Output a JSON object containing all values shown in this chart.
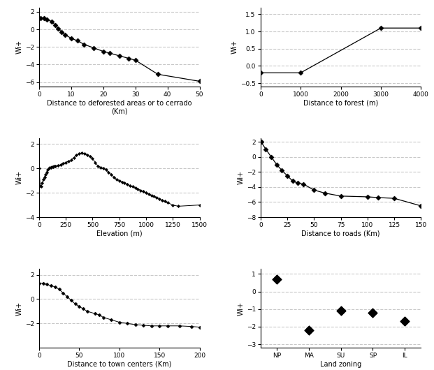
{
  "subplot_a": {
    "xlabel": "Distance to deforested areas or to cerrado\n(Km)",
    "ylabel": "Wi+",
    "x": [
      0.5,
      1.5,
      2.5,
      4,
      5,
      6,
      7,
      8,
      10,
      12,
      14,
      17,
      20,
      22,
      25,
      28,
      30,
      37,
      50
    ],
    "y": [
      1.3,
      1.3,
      1.1,
      0.9,
      0.5,
      0.1,
      -0.3,
      -0.6,
      -1.0,
      -1.3,
      -1.7,
      -2.1,
      -2.5,
      -2.7,
      -3.0,
      -3.3,
      -3.5,
      -5.1,
      -5.9
    ],
    "xlim": [
      0,
      50
    ],
    "ylim": [
      -6.5,
      2.5
    ],
    "yticks": [
      -6,
      -4,
      -2,
      0,
      2
    ],
    "xticks": [
      0,
      10,
      20,
      30,
      40,
      50
    ]
  },
  "subplot_b": {
    "xlabel": "Distance to forest (m)",
    "ylabel": "Wi+",
    "x": [
      0,
      1000,
      3000,
      4000
    ],
    "y": [
      -0.2,
      -0.2,
      1.1,
      1.1
    ],
    "xlim": [
      0,
      4000
    ],
    "ylim": [
      -0.6,
      1.7
    ],
    "yticks": [
      -0.5,
      0,
      0.5,
      1,
      1.5
    ],
    "xticks": [
      0,
      1000,
      2000,
      3000,
      4000
    ]
  },
  "subplot_c": {
    "xlabel": "Elevation (m)",
    "ylabel": "Wi+",
    "x": [
      0,
      10,
      20,
      30,
      40,
      50,
      60,
      70,
      80,
      90,
      100,
      110,
      120,
      130,
      140,
      150,
      175,
      200,
      225,
      250,
      275,
      300,
      325,
      350,
      375,
      400,
      425,
      450,
      475,
      500,
      525,
      550,
      575,
      600,
      625,
      650,
      675,
      700,
      725,
      750,
      775,
      800,
      825,
      850,
      875,
      900,
      925,
      950,
      975,
      1000,
      1025,
      1050,
      1075,
      1100,
      1125,
      1150,
      1175,
      1200,
      1250,
      1300,
      1500
    ],
    "y": [
      0.0,
      -1.4,
      -1.5,
      -1.2,
      -0.9,
      -0.7,
      -0.5,
      -0.3,
      -0.1,
      0.0,
      0.05,
      0.1,
      0.15,
      0.15,
      0.2,
      0.2,
      0.25,
      0.3,
      0.4,
      0.5,
      0.6,
      0.7,
      0.9,
      1.1,
      1.2,
      1.3,
      1.2,
      1.1,
      1.0,
      0.8,
      0.5,
      0.2,
      0.1,
      0.0,
      -0.1,
      -0.3,
      -0.5,
      -0.7,
      -0.9,
      -1.0,
      -1.1,
      -1.2,
      -1.3,
      -1.4,
      -1.5,
      -1.6,
      -1.7,
      -1.8,
      -1.9,
      -2.0,
      -2.1,
      -2.2,
      -2.3,
      -2.4,
      -2.5,
      -2.6,
      -2.7,
      -2.8,
      -3.0,
      -3.1,
      -3.0
    ],
    "xlim": [
      0,
      1500
    ],
    "ylim": [
      -4,
      2.5
    ],
    "yticks": [
      -4,
      -2,
      0,
      2
    ],
    "xticks": [
      0,
      250,
      500,
      750,
      1000,
      1250,
      1500
    ]
  },
  "subplot_d": {
    "xlabel": "Distance to roads (Km)",
    "ylabel": "Wi+",
    "x": [
      0.5,
      5,
      10,
      15,
      20,
      25,
      30,
      35,
      40,
      50,
      60,
      75,
      100,
      110,
      125,
      150
    ],
    "y": [
      2.0,
      1.0,
      0.0,
      -1.0,
      -1.8,
      -2.5,
      -3.2,
      -3.5,
      -3.6,
      -4.4,
      -4.8,
      -5.2,
      -5.3,
      -5.4,
      -5.5,
      -6.5
    ],
    "xlim": [
      0,
      150
    ],
    "ylim": [
      -8,
      2.5
    ],
    "yticks": [
      -8,
      -6,
      -4,
      -2,
      0,
      2
    ],
    "xticks": [
      0,
      25,
      50,
      75,
      100,
      125,
      150
    ]
  },
  "subplot_e": {
    "xlabel": "Distance to town centers (Km)",
    "ylabel": "Wi+",
    "x": [
      0.5,
      5,
      10,
      15,
      20,
      25,
      30,
      35,
      40,
      45,
      50,
      55,
      60,
      70,
      75,
      80,
      90,
      100,
      110,
      120,
      130,
      140,
      150,
      160,
      175,
      190,
      200
    ],
    "y": [
      1.3,
      1.3,
      1.2,
      1.1,
      1.0,
      0.8,
      0.5,
      0.2,
      -0.1,
      -0.4,
      -0.6,
      -0.8,
      -1.0,
      -1.2,
      -1.3,
      -1.5,
      -1.7,
      -1.9,
      -2.0,
      -2.1,
      -2.15,
      -2.2,
      -2.2,
      -2.2,
      -2.2,
      -2.25,
      -2.3
    ],
    "xlim": [
      0,
      200
    ],
    "ylim": [
      -4,
      2.5
    ],
    "yticks": [
      -2,
      0,
      2
    ],
    "xticks": [
      0,
      50,
      100,
      150,
      200
    ]
  },
  "subplot_f": {
    "xlabel": "Land zoning",
    "ylabel": "Wi+",
    "categories": [
      "NP",
      "MA",
      "SU",
      "SP",
      "IL"
    ],
    "values": [
      0.7,
      -2.2,
      -1.1,
      -1.2,
      -1.7
    ],
    "xlim": [
      -0.5,
      4.5
    ],
    "ylim": [
      -3.2,
      1.3
    ],
    "yticks": [
      -3,
      -2,
      -1,
      0,
      1
    ]
  },
  "line_color": "#000000",
  "marker_style": "D",
  "marker_size": 3.5,
  "marker_color": "#000000",
  "grid_linestyle": "--",
  "grid_color": "#bbbbbb",
  "grid_alpha": 0.8,
  "ylabel_fontsize": 7,
  "xlabel_fontsize": 7,
  "tick_fontsize": 6.5
}
